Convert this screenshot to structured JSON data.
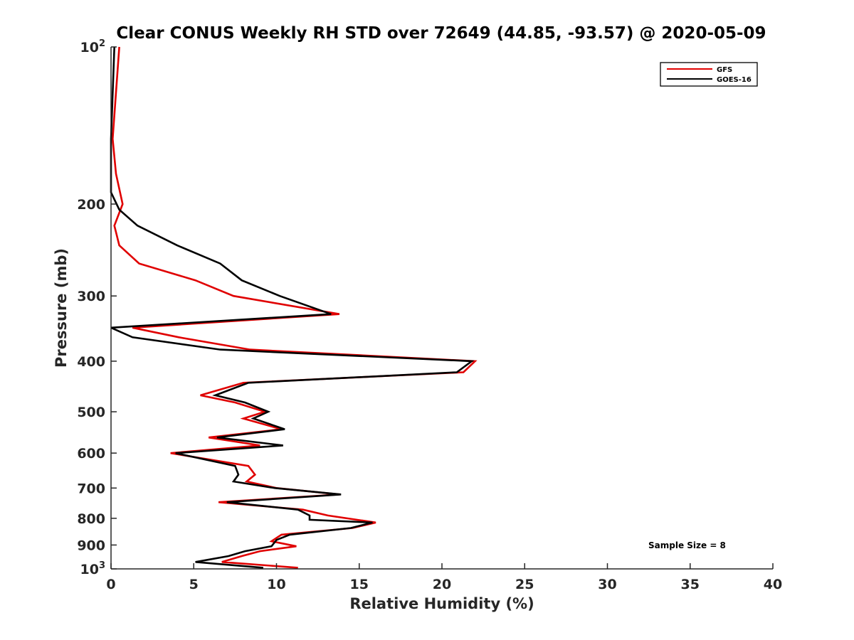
{
  "chart_data": {
    "type": "line",
    "title": "Clear CONUS Weekly RH STD over 72649 (44.85, -93.57) @ 2020-05-09",
    "xlabel": "Relative Humidity (%)",
    "ylabel": "Pressure (mb)",
    "xlim": [
      0,
      40
    ],
    "ylim": [
      100,
      1000
    ],
    "yscale": "log",
    "y_reversed": true,
    "grid": false,
    "legend_position": "top-right",
    "x_ticks": [
      {
        "value": 0,
        "label": "0"
      },
      {
        "value": 5,
        "label": "5"
      },
      {
        "value": 10,
        "label": "10"
      },
      {
        "value": 15,
        "label": "15"
      },
      {
        "value": 20,
        "label": "20"
      },
      {
        "value": 25,
        "label": "25"
      },
      {
        "value": 30,
        "label": "30"
      },
      {
        "value": 35,
        "label": "35"
      },
      {
        "value": 40,
        "label": "40"
      }
    ],
    "y_ticks": [
      {
        "value": 100,
        "base": "10",
        "exp": "2"
      },
      {
        "value": 200,
        "base": "200",
        "exp": ""
      },
      {
        "value": 300,
        "base": "300",
        "exp": ""
      },
      {
        "value": 400,
        "base": "400",
        "exp": ""
      },
      {
        "value": 500,
        "base": "500",
        "exp": ""
      },
      {
        "value": 600,
        "base": "600",
        "exp": ""
      },
      {
        "value": 700,
        "base": "700",
        "exp": ""
      },
      {
        "value": 800,
        "base": "800",
        "exp": ""
      },
      {
        "value": 900,
        "base": "900",
        "exp": ""
      },
      {
        "value": 1000,
        "base": "10",
        "exp": "3"
      }
    ],
    "annotation": "Sample Size = 8",
    "series": [
      {
        "name": "GFS",
        "color": "#e00000",
        "points": [
          [
            0.5,
            100
          ],
          [
            0.1,
            150
          ],
          [
            0.3,
            175
          ],
          [
            0.7,
            200
          ],
          [
            0.2,
            220
          ],
          [
            0.5,
            240
          ],
          [
            1.7,
            260
          ],
          [
            5.1,
            280
          ],
          [
            7.4,
            300
          ],
          [
            13.8,
            325
          ],
          [
            1.3,
            345
          ],
          [
            4.1,
            360
          ],
          [
            8.4,
            380
          ],
          [
            22.0,
            400
          ],
          [
            21.3,
            420
          ],
          [
            8.0,
            440
          ],
          [
            5.4,
            465
          ],
          [
            7.5,
            480
          ],
          [
            9.3,
            500
          ],
          [
            8.0,
            515
          ],
          [
            10.3,
            540
          ],
          [
            5.9,
            560
          ],
          [
            9.0,
            580
          ],
          [
            3.6,
            600
          ],
          [
            8.3,
            635
          ],
          [
            8.7,
            660
          ],
          [
            8.2,
            680
          ],
          [
            10.0,
            700
          ],
          [
            13.8,
            720
          ],
          [
            6.5,
            745
          ],
          [
            11.6,
            770
          ],
          [
            13.1,
            790
          ],
          [
            16.0,
            815
          ],
          [
            14.6,
            835
          ],
          [
            10.3,
            860
          ],
          [
            9.7,
            885
          ],
          [
            11.2,
            905
          ],
          [
            9.0,
            925
          ],
          [
            7.9,
            945
          ],
          [
            6.7,
            970
          ],
          [
            11.3,
            995
          ]
        ]
      },
      {
        "name": "GOES-16",
        "color": "#000000",
        "points": [
          [
            0.2,
            100
          ],
          [
            0.0,
            150
          ],
          [
            0.0,
            175
          ],
          [
            0.0,
            190
          ],
          [
            0.5,
            205
          ],
          [
            1.6,
            220
          ],
          [
            4.0,
            240
          ],
          [
            6.6,
            260
          ],
          [
            7.9,
            280
          ],
          [
            10.2,
            300
          ],
          [
            13.3,
            325
          ],
          [
            0.0,
            345
          ],
          [
            1.3,
            360
          ],
          [
            6.6,
            380
          ],
          [
            21.8,
            400
          ],
          [
            20.9,
            420
          ],
          [
            8.3,
            440
          ],
          [
            6.3,
            465
          ],
          [
            8.1,
            480
          ],
          [
            9.5,
            500
          ],
          [
            8.6,
            515
          ],
          [
            10.5,
            540
          ],
          [
            6.4,
            560
          ],
          [
            10.4,
            580
          ],
          [
            3.9,
            600
          ],
          [
            7.5,
            635
          ],
          [
            7.7,
            660
          ],
          [
            7.4,
            680
          ],
          [
            9.9,
            700
          ],
          [
            13.9,
            720
          ],
          [
            7.0,
            745
          ],
          [
            11.3,
            770
          ],
          [
            12.0,
            790
          ],
          [
            12.0,
            805
          ],
          [
            15.8,
            815
          ],
          [
            14.5,
            835
          ],
          [
            10.8,
            860
          ],
          [
            10.0,
            880
          ],
          [
            9.7,
            905
          ],
          [
            8.1,
            925
          ],
          [
            7.1,
            945
          ],
          [
            5.1,
            970
          ],
          [
            9.2,
            995
          ]
        ]
      }
    ]
  }
}
